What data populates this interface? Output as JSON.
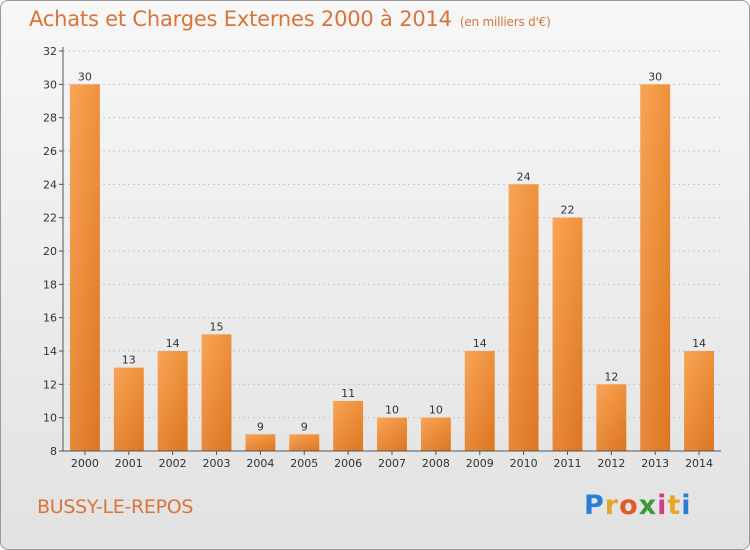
{
  "chart_data": {
    "type": "bar",
    "title": "Achats et Charges Externes 2000 à 2014",
    "subtitle": "(en milliers d'€)",
    "categories": [
      "2000",
      "2001",
      "2002",
      "2003",
      "2004",
      "2005",
      "2006",
      "2007",
      "2008",
      "2009",
      "2010",
      "2011",
      "2012",
      "2013",
      "2014"
    ],
    "values": [
      30,
      13,
      14,
      15,
      9,
      9,
      11,
      10,
      10,
      14,
      24,
      22,
      12,
      30,
      14
    ],
    "ylim": [
      8,
      32
    ],
    "yticks": [
      8,
      10,
      12,
      14,
      16,
      18,
      20,
      22,
      24,
      26,
      28,
      30,
      32
    ],
    "grid": true,
    "bar_color": "#f0903a"
  },
  "commune": "BUSSY-LE-REPOS",
  "logo": {
    "letters": [
      "P",
      "r",
      "o",
      "x",
      "i",
      "t",
      "i"
    ],
    "colors": [
      "#2a7fd4",
      "#e8a62b",
      "#e05a2a",
      "#3a9a3a",
      "#d43a8a",
      "#e8a62b",
      "#2a7fd4"
    ]
  }
}
